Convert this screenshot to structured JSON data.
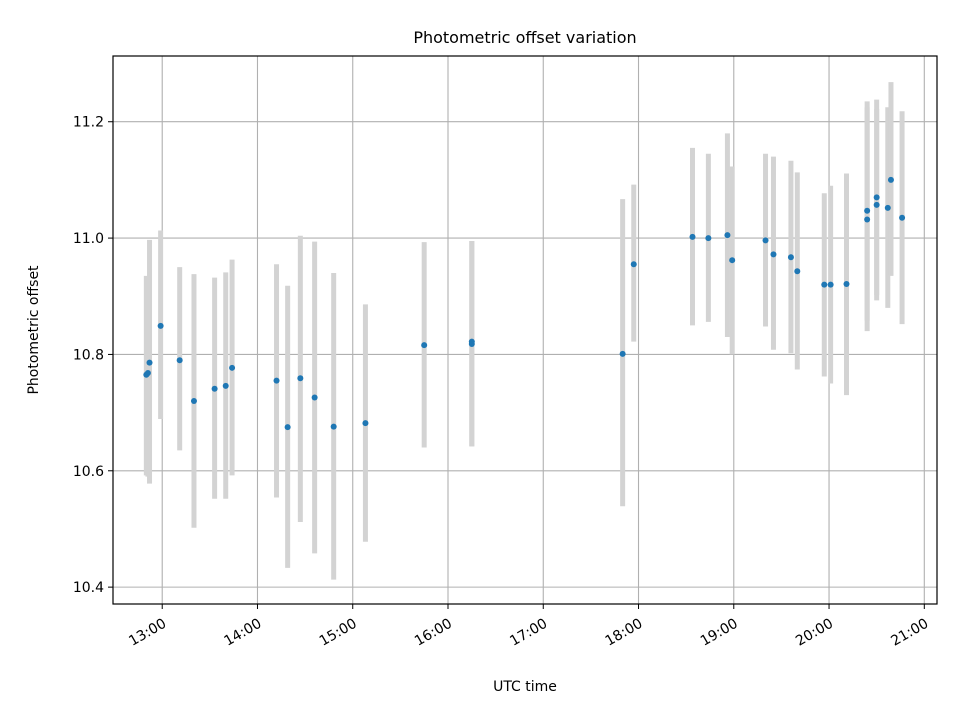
{
  "chart_data": {
    "type": "scatter",
    "title": "Photometric offset variation",
    "xlabel": "UTC time",
    "ylabel": "Photometric offset",
    "xlim": [
      "12:29",
      "21:08"
    ],
    "ylim": [
      10.371,
      11.313
    ],
    "x_ticks": [
      "13:00",
      "14:00",
      "15:00",
      "16:00",
      "17:00",
      "18:00",
      "19:00",
      "20:00",
      "21:00"
    ],
    "y_ticks": [
      "10.4",
      "10.6",
      "10.8",
      "11.0",
      "11.2"
    ],
    "grid": true,
    "point_color": "#1f77b4",
    "errorbar_color": "#d3d3d3",
    "points": [
      {
        "x": "12:50",
        "y": 10.765,
        "err_low": 10.592,
        "err_high": 10.935
      },
      {
        "x": "12:51",
        "y": 10.768,
        "err_low": 10.59,
        "err_high": 10.93
      },
      {
        "x": "12:52",
        "y": 10.786,
        "err_low": 10.578,
        "err_high": 10.997
      },
      {
        "x": "12:59",
        "y": 10.849,
        "err_low": 10.689,
        "err_high": 11.013
      },
      {
        "x": "13:11",
        "y": 10.79,
        "err_low": 10.635,
        "err_high": 10.95
      },
      {
        "x": "13:20",
        "y": 10.72,
        "err_low": 10.502,
        "err_high": 10.938
      },
      {
        "x": "13:33",
        "y": 10.741,
        "err_low": 10.552,
        "err_high": 10.932
      },
      {
        "x": "13:40",
        "y": 10.746,
        "err_low": 10.552,
        "err_high": 10.941
      },
      {
        "x": "13:44",
        "y": 10.777,
        "err_low": 10.592,
        "err_high": 10.963
      },
      {
        "x": "14:12",
        "y": 10.755,
        "err_low": 10.554,
        "err_high": 10.955
      },
      {
        "x": "14:19",
        "y": 10.675,
        "err_low": 10.433,
        "err_high": 10.918
      },
      {
        "x": "14:27",
        "y": 10.759,
        "err_low": 10.512,
        "err_high": 11.004
      },
      {
        "x": "14:36",
        "y": 10.726,
        "err_low": 10.458,
        "err_high": 10.994
      },
      {
        "x": "14:48",
        "y": 10.676,
        "err_low": 10.413,
        "err_high": 10.94
      },
      {
        "x": "15:08",
        "y": 10.682,
        "err_low": 10.478,
        "err_high": 10.886
      },
      {
        "x": "15:45",
        "y": 10.816,
        "err_low": 10.64,
        "err_high": 10.993
      },
      {
        "x": "16:15",
        "y": 10.822,
        "err_low": 10.642,
        "err_high": 10.995
      },
      {
        "x": "16:15",
        "y": 10.818,
        "err_low": 10.642,
        "err_high": 10.995
      },
      {
        "x": "17:50",
        "y": 10.801,
        "err_low": 10.539,
        "err_high": 11.067
      },
      {
        "x": "17:57",
        "y": 10.955,
        "err_low": 10.822,
        "err_high": 11.092
      },
      {
        "x": "18:34",
        "y": 11.002,
        "err_low": 10.85,
        "err_high": 11.155
      },
      {
        "x": "18:44",
        "y": 11.0,
        "err_low": 10.856,
        "err_high": 11.145
      },
      {
        "x": "18:56",
        "y": 11.005,
        "err_low": 10.83,
        "err_high": 11.18
      },
      {
        "x": "18:59",
        "y": 10.962,
        "err_low": 10.8,
        "err_high": 11.123
      },
      {
        "x": "19:20",
        "y": 10.996,
        "err_low": 10.848,
        "err_high": 11.145
      },
      {
        "x": "19:25",
        "y": 10.972,
        "err_low": 10.808,
        "err_high": 11.14
      },
      {
        "x": "19:36",
        "y": 10.967,
        "err_low": 10.802,
        "err_high": 11.133
      },
      {
        "x": "19:40",
        "y": 10.943,
        "err_low": 10.774,
        "err_high": 11.113
      },
      {
        "x": "19:57",
        "y": 10.92,
        "err_low": 10.762,
        "err_high": 11.077
      },
      {
        "x": "20:01",
        "y": 10.92,
        "err_low": 10.75,
        "err_high": 11.09
      },
      {
        "x": "20:11",
        "y": 10.921,
        "err_low": 10.73,
        "err_high": 11.111
      },
      {
        "x": "20:24",
        "y": 11.047,
        "err_low": 10.858,
        "err_high": 11.235
      },
      {
        "x": "20:24",
        "y": 11.032,
        "err_low": 10.84,
        "err_high": 11.225
      },
      {
        "x": "20:30",
        "y": 11.057,
        "err_low": 10.893,
        "err_high": 11.222
      },
      {
        "x": "20:30",
        "y": 11.07,
        "err_low": 10.902,
        "err_high": 11.238
      },
      {
        "x": "20:37",
        "y": 11.052,
        "err_low": 10.88,
        "err_high": 11.225
      },
      {
        "x": "20:39",
        "y": 11.1,
        "err_low": 10.935,
        "err_high": 11.268
      },
      {
        "x": "20:46",
        "y": 11.035,
        "err_low": 10.852,
        "err_high": 11.218
      }
    ]
  }
}
